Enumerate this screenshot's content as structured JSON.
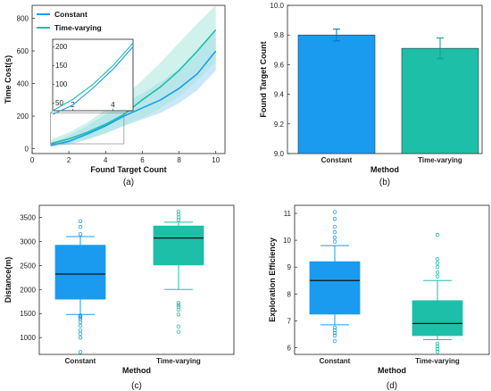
{
  "colors": {
    "constant": "#1a9bf0",
    "time_varying": "#1dbfa8",
    "constant_band": "#9fd6f7",
    "time_varying_band": "#a9e6dc"
  },
  "chart_data": [
    {
      "id": "a",
      "type": "line",
      "caption": "(a)",
      "xlabel": "Found Target Count",
      "ylabel": "Time Cost(s)",
      "xlim": [
        0,
        10.5
      ],
      "ylim": [
        -30,
        880
      ],
      "xticks": [
        0,
        2,
        4,
        6,
        8,
        10
      ],
      "yticks": [
        0,
        200,
        400,
        600,
        800
      ],
      "x": [
        1,
        2,
        3,
        4,
        5,
        6,
        7,
        8,
        9,
        10
      ],
      "series": [
        {
          "name": "Constant",
          "values": [
            20,
            45,
            90,
            140,
            200,
            250,
            300,
            370,
            460,
            600
          ],
          "lower": [
            10,
            25,
            55,
            95,
            140,
            180,
            220,
            280,
            360,
            480
          ],
          "upper": [
            40,
            80,
            140,
            210,
            280,
            340,
            410,
            490,
            590,
            730
          ]
        },
        {
          "name": "Time-varying",
          "values": [
            30,
            60,
            100,
            150,
            210,
            300,
            380,
            480,
            600,
            730
          ],
          "lower": [
            15,
            35,
            60,
            95,
            140,
            190,
            250,
            320,
            420,
            530
          ],
          "upper": [
            55,
            100,
            160,
            240,
            320,
            420,
            530,
            650,
            770,
            880
          ]
        }
      ],
      "legend_position": "top-left",
      "inset": {
        "xlim": [
          1,
          5
        ],
        "ylim": [
          30,
          220
        ],
        "xticks": [
          2,
          4
        ],
        "yticks": [
          50,
          100,
          150,
          200
        ]
      }
    },
    {
      "id": "b",
      "type": "bar",
      "caption": "(b)",
      "xlabel": "Method",
      "ylabel": "Found Target Count",
      "categories": [
        "Constant",
        "Time-varying"
      ],
      "values": [
        9.8,
        9.71
      ],
      "errors": [
        0.04,
        0.07
      ],
      "ylim": [
        9.0,
        10.0
      ],
      "yticks": [
        "9.0",
        "9.2",
        "9.4",
        "9.6",
        "9.8",
        "10.0"
      ]
    },
    {
      "id": "c",
      "type": "box",
      "caption": "(c)",
      "xlabel": "Method",
      "ylabel": "Distance(m)",
      "categories": [
        "Constant",
        "Time-varying"
      ],
      "ylim": [
        650,
        3750
      ],
      "yticks": [
        1000,
        1500,
        2000,
        2500,
        3000,
        3500
      ],
      "boxes": [
        {
          "q1": 1800,
          "median": 2320,
          "q3": 2920,
          "whisker_low": 1480,
          "whisker_high": 3100,
          "outliers": [
            700,
            1000,
            1080,
            1150,
            1250,
            1320,
            1380,
            1420,
            1440,
            1460,
            3150,
            3300,
            3420
          ]
        },
        {
          "q1": 2510,
          "median": 3070,
          "q3": 3320,
          "whisker_low": 2000,
          "whisker_high": 3400,
          "outliers": [
            1120,
            1230,
            1480,
            1580,
            1640,
            1680,
            1720,
            3450,
            3500,
            3560,
            3620
          ]
        }
      ]
    },
    {
      "id": "d",
      "type": "box",
      "caption": "(d)",
      "xlabel": "Method",
      "ylabel": "Exploration Efficiency",
      "categories": [
        "Constant",
        "Time-varying"
      ],
      "ylim": [
        5.75,
        11.3
      ],
      "yticks": [
        6,
        7,
        8,
        9,
        10,
        11
      ],
      "boxes": [
        {
          "q1": 7.25,
          "median": 8.5,
          "q3": 9.2,
          "whisker_low": 6.85,
          "whisker_high": 9.8,
          "outliers": [
            6.25,
            6.45,
            6.55,
            6.65,
            6.75,
            9.95,
            10.1,
            10.3,
            10.5,
            10.8,
            11.05
          ]
        },
        {
          "q1": 6.45,
          "median": 6.9,
          "q3": 7.75,
          "whisker_low": 6.3,
          "whisker_high": 8.5,
          "outliers": [
            5.85,
            5.95,
            6.05,
            6.15,
            8.65,
            8.8,
            9.0,
            9.15,
            9.3,
            10.2
          ]
        }
      ]
    }
  ]
}
